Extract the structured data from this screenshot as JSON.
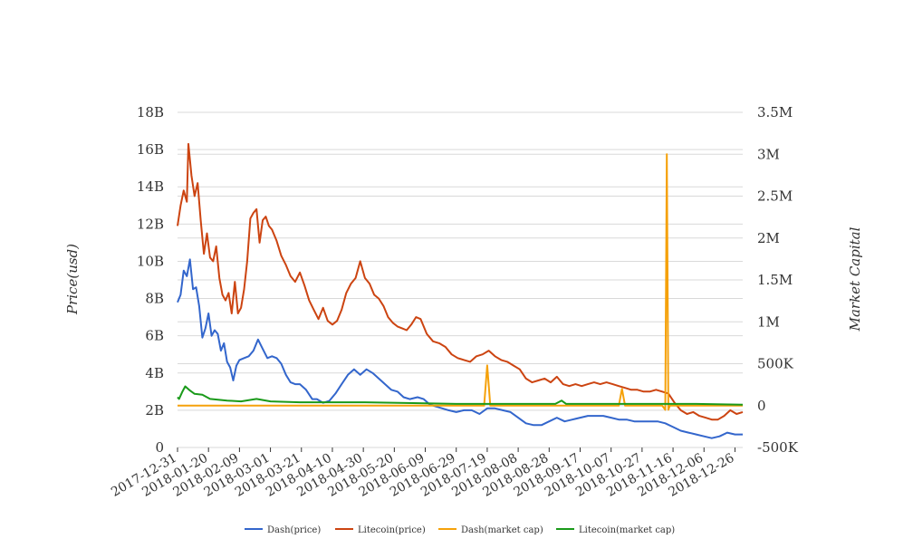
{
  "chart_data": {
    "type": "line",
    "title": "",
    "xlabel": "",
    "ylabel_left": "Price(usd)",
    "ylabel_right": "Market Capital",
    "x_ticks": [
      "2017-12-31",
      "2018-01-20",
      "2018-02-09",
      "2018-03-01",
      "2018-03-21",
      "2018-04-10",
      "2018-04-30",
      "2018-05-20",
      "2018-06-09",
      "2018-06-29",
      "2018-07-19",
      "2018-08-08",
      "2018-08-28",
      "2018-09-17",
      "2018-10-07",
      "2018-10-27",
      "2018-11-16",
      "2018-12-06",
      "2018-12-26"
    ],
    "x_range": [
      "2017-12-31",
      "2018-12-31"
    ],
    "y_left": {
      "ticks": [
        0,
        2,
        4,
        6,
        8,
        10,
        12,
        14,
        16,
        18
      ],
      "tick_labels": [
        "0",
        "2B",
        "4B",
        "6B",
        "8B",
        "10B",
        "12B",
        "14B",
        "16B",
        "18B"
      ],
      "range": [
        0,
        18
      ]
    },
    "y_right": {
      "ticks": [
        -500000,
        0,
        500000,
        1000000,
        1500000,
        2000000,
        2500000,
        3000000,
        3500000
      ],
      "tick_labels": [
        "-500K",
        "0",
        "500K",
        "1M",
        "1.5M",
        "2M",
        "2.5M",
        "3M",
        "3.5M"
      ],
      "range": [
        -500000,
        3500000
      ]
    },
    "legend_position": "bottom",
    "series": [
      {
        "name": "Dash(price)",
        "axis": "left",
        "color": "#3366cc",
        "points": [
          [
            "2017-12-31",
            7.8
          ],
          [
            "2018-01-02",
            8.2
          ],
          [
            "2018-01-04",
            9.5
          ],
          [
            "2018-01-06",
            9.2
          ],
          [
            "2018-01-08",
            10.1
          ],
          [
            "2018-01-10",
            8.5
          ],
          [
            "2018-01-12",
            8.6
          ],
          [
            "2018-01-14",
            7.6
          ],
          [
            "2018-01-16",
            5.9
          ],
          [
            "2018-01-18",
            6.4
          ],
          [
            "2018-01-20",
            7.2
          ],
          [
            "2018-01-22",
            6.0
          ],
          [
            "2018-01-24",
            6.3
          ],
          [
            "2018-01-26",
            6.1
          ],
          [
            "2018-01-28",
            5.2
          ],
          [
            "2018-01-30",
            5.6
          ],
          [
            "2018-02-01",
            4.6
          ],
          [
            "2018-02-03",
            4.3
          ],
          [
            "2018-02-05",
            3.6
          ],
          [
            "2018-02-07",
            4.4
          ],
          [
            "2018-02-09",
            4.7
          ],
          [
            "2018-02-12",
            4.8
          ],
          [
            "2018-02-15",
            4.9
          ],
          [
            "2018-02-18",
            5.2
          ],
          [
            "2018-02-21",
            5.8
          ],
          [
            "2018-02-24",
            5.3
          ],
          [
            "2018-02-27",
            4.8
          ],
          [
            "2018-03-02",
            4.9
          ],
          [
            "2018-03-05",
            4.8
          ],
          [
            "2018-03-08",
            4.5
          ],
          [
            "2018-03-11",
            3.9
          ],
          [
            "2018-03-14",
            3.5
          ],
          [
            "2018-03-17",
            3.4
          ],
          [
            "2018-03-20",
            3.4
          ],
          [
            "2018-03-24",
            3.1
          ],
          [
            "2018-03-28",
            2.6
          ],
          [
            "2018-03-31",
            2.6
          ],
          [
            "2018-04-04",
            2.4
          ],
          [
            "2018-04-08",
            2.5
          ],
          [
            "2018-04-12",
            2.9
          ],
          [
            "2018-04-16",
            3.4
          ],
          [
            "2018-04-20",
            3.9
          ],
          [
            "2018-04-24",
            4.2
          ],
          [
            "2018-04-28",
            3.9
          ],
          [
            "2018-05-02",
            4.2
          ],
          [
            "2018-05-06",
            4.0
          ],
          [
            "2018-05-10",
            3.7
          ],
          [
            "2018-05-14",
            3.4
          ],
          [
            "2018-05-18",
            3.1
          ],
          [
            "2018-05-22",
            3.0
          ],
          [
            "2018-05-26",
            2.7
          ],
          [
            "2018-05-30",
            2.6
          ],
          [
            "2018-06-04",
            2.7
          ],
          [
            "2018-06-08",
            2.6
          ],
          [
            "2018-06-12",
            2.3
          ],
          [
            "2018-06-16",
            2.2
          ],
          [
            "2018-06-20",
            2.1
          ],
          [
            "2018-06-24",
            2.0
          ],
          [
            "2018-06-29",
            1.9
          ],
          [
            "2018-07-04",
            2.0
          ],
          [
            "2018-07-09",
            2.0
          ],
          [
            "2018-07-14",
            1.8
          ],
          [
            "2018-07-19",
            2.1
          ],
          [
            "2018-07-24",
            2.1
          ],
          [
            "2018-07-29",
            2.0
          ],
          [
            "2018-08-03",
            1.9
          ],
          [
            "2018-08-08",
            1.6
          ],
          [
            "2018-08-13",
            1.3
          ],
          [
            "2018-08-18",
            1.2
          ],
          [
            "2018-08-23",
            1.2
          ],
          [
            "2018-08-28",
            1.4
          ],
          [
            "2018-09-02",
            1.6
          ],
          [
            "2018-09-07",
            1.4
          ],
          [
            "2018-09-12",
            1.5
          ],
          [
            "2018-09-17",
            1.6
          ],
          [
            "2018-09-22",
            1.7
          ],
          [
            "2018-09-27",
            1.7
          ],
          [
            "2018-10-02",
            1.7
          ],
          [
            "2018-10-07",
            1.6
          ],
          [
            "2018-10-12",
            1.5
          ],
          [
            "2018-10-17",
            1.5
          ],
          [
            "2018-10-22",
            1.4
          ],
          [
            "2018-10-27",
            1.4
          ],
          [
            "2018-11-01",
            1.4
          ],
          [
            "2018-11-06",
            1.4
          ],
          [
            "2018-11-11",
            1.3
          ],
          [
            "2018-11-16",
            1.1
          ],
          [
            "2018-11-21",
            0.9
          ],
          [
            "2018-11-26",
            0.8
          ],
          [
            "2018-12-01",
            0.7
          ],
          [
            "2018-12-06",
            0.6
          ],
          [
            "2018-12-11",
            0.5
          ],
          [
            "2018-12-16",
            0.6
          ],
          [
            "2018-12-21",
            0.8
          ],
          [
            "2018-12-26",
            0.7
          ],
          [
            "2018-12-31",
            0.7
          ]
        ]
      },
      {
        "name": "Litecoin(price)",
        "axis": "left",
        "color": "#cc4411",
        "points": [
          [
            "2017-12-31",
            11.9
          ],
          [
            "2018-01-02",
            13.0
          ],
          [
            "2018-01-04",
            13.8
          ],
          [
            "2018-01-06",
            13.2
          ],
          [
            "2018-01-07",
            16.3
          ],
          [
            "2018-01-09",
            14.6
          ],
          [
            "2018-01-11",
            13.5
          ],
          [
            "2018-01-13",
            14.2
          ],
          [
            "2018-01-15",
            12.2
          ],
          [
            "2018-01-17",
            10.4
          ],
          [
            "2018-01-19",
            11.5
          ],
          [
            "2018-01-21",
            10.2
          ],
          [
            "2018-01-23",
            10.0
          ],
          [
            "2018-01-25",
            10.8
          ],
          [
            "2018-01-27",
            9.1
          ],
          [
            "2018-01-29",
            8.2
          ],
          [
            "2018-01-31",
            7.9
          ],
          [
            "2018-02-02",
            8.3
          ],
          [
            "2018-02-04",
            7.2
          ],
          [
            "2018-02-06",
            8.9
          ],
          [
            "2018-02-08",
            7.2
          ],
          [
            "2018-02-10",
            7.5
          ],
          [
            "2018-02-12",
            8.5
          ],
          [
            "2018-02-14",
            10.0
          ],
          [
            "2018-02-16",
            12.3
          ],
          [
            "2018-02-18",
            12.6
          ],
          [
            "2018-02-20",
            12.8
          ],
          [
            "2018-02-22",
            11.0
          ],
          [
            "2018-02-24",
            12.2
          ],
          [
            "2018-02-26",
            12.4
          ],
          [
            "2018-02-28",
            11.9
          ],
          [
            "2018-03-02",
            11.7
          ],
          [
            "2018-03-05",
            11.1
          ],
          [
            "2018-03-08",
            10.3
          ],
          [
            "2018-03-11",
            9.8
          ],
          [
            "2018-03-14",
            9.2
          ],
          [
            "2018-03-17",
            8.9
          ],
          [
            "2018-03-20",
            9.4
          ],
          [
            "2018-03-23",
            8.7
          ],
          [
            "2018-03-26",
            7.9
          ],
          [
            "2018-03-29",
            7.4
          ],
          [
            "2018-04-01",
            6.9
          ],
          [
            "2018-04-04",
            7.5
          ],
          [
            "2018-04-07",
            6.8
          ],
          [
            "2018-04-10",
            6.6
          ],
          [
            "2018-04-13",
            6.8
          ],
          [
            "2018-04-16",
            7.4
          ],
          [
            "2018-04-19",
            8.3
          ],
          [
            "2018-04-22",
            8.8
          ],
          [
            "2018-04-25",
            9.1
          ],
          [
            "2018-04-28",
            10.0
          ],
          [
            "2018-05-01",
            9.1
          ],
          [
            "2018-05-04",
            8.8
          ],
          [
            "2018-05-07",
            8.2
          ],
          [
            "2018-05-10",
            8.0
          ],
          [
            "2018-05-13",
            7.6
          ],
          [
            "2018-05-16",
            7.0
          ],
          [
            "2018-05-19",
            6.7
          ],
          [
            "2018-05-22",
            6.5
          ],
          [
            "2018-05-25",
            6.4
          ],
          [
            "2018-05-28",
            6.3
          ],
          [
            "2018-05-31",
            6.6
          ],
          [
            "2018-06-03",
            7.0
          ],
          [
            "2018-06-06",
            6.9
          ],
          [
            "2018-06-10",
            6.1
          ],
          [
            "2018-06-14",
            5.7
          ],
          [
            "2018-06-18",
            5.6
          ],
          [
            "2018-06-22",
            5.4
          ],
          [
            "2018-06-26",
            5.0
          ],
          [
            "2018-06-30",
            4.8
          ],
          [
            "2018-07-04",
            4.7
          ],
          [
            "2018-07-08",
            4.6
          ],
          [
            "2018-07-12",
            4.9
          ],
          [
            "2018-07-16",
            5.0
          ],
          [
            "2018-07-20",
            5.2
          ],
          [
            "2018-07-24",
            4.9
          ],
          [
            "2018-07-28",
            4.7
          ],
          [
            "2018-08-01",
            4.6
          ],
          [
            "2018-08-05",
            4.4
          ],
          [
            "2018-08-09",
            4.2
          ],
          [
            "2018-08-13",
            3.7
          ],
          [
            "2018-08-17",
            3.5
          ],
          [
            "2018-08-21",
            3.6
          ],
          [
            "2018-08-25",
            3.7
          ],
          [
            "2018-08-29",
            3.5
          ],
          [
            "2018-09-02",
            3.8
          ],
          [
            "2018-09-06",
            3.4
          ],
          [
            "2018-09-10",
            3.3
          ],
          [
            "2018-09-14",
            3.4
          ],
          [
            "2018-09-18",
            3.3
          ],
          [
            "2018-09-22",
            3.4
          ],
          [
            "2018-09-26",
            3.5
          ],
          [
            "2018-09-30",
            3.4
          ],
          [
            "2018-10-04",
            3.5
          ],
          [
            "2018-10-08",
            3.4
          ],
          [
            "2018-10-12",
            3.3
          ],
          [
            "2018-10-16",
            3.2
          ],
          [
            "2018-10-20",
            3.1
          ],
          [
            "2018-10-24",
            3.1
          ],
          [
            "2018-10-28",
            3.0
          ],
          [
            "2018-11-01",
            3.0
          ],
          [
            "2018-11-05",
            3.1
          ],
          [
            "2018-11-09",
            3.0
          ],
          [
            "2018-11-13",
            2.9
          ],
          [
            "2018-11-17",
            2.4
          ],
          [
            "2018-11-21",
            2.0
          ],
          [
            "2018-11-25",
            1.8
          ],
          [
            "2018-11-29",
            1.9
          ],
          [
            "2018-12-03",
            1.7
          ],
          [
            "2018-12-07",
            1.6
          ],
          [
            "2018-12-11",
            1.5
          ],
          [
            "2018-12-15",
            1.5
          ],
          [
            "2018-12-19",
            1.7
          ],
          [
            "2018-12-23",
            2.0
          ],
          [
            "2018-12-27",
            1.8
          ],
          [
            "2018-12-31",
            1.9
          ]
        ]
      },
      {
        "name": "Dash(market cap)",
        "axis": "right",
        "color": "#f5a10a",
        "points": [
          [
            "2017-12-31",
            0
          ],
          [
            "2018-07-17",
            0
          ],
          [
            "2018-07-19",
            480000
          ],
          [
            "2018-07-21",
            0
          ],
          [
            "2018-10-12",
            0
          ],
          [
            "2018-10-14",
            200000
          ],
          [
            "2018-10-16",
            0
          ],
          [
            "2018-11-09",
            0
          ],
          [
            "2018-11-11",
            -50000
          ],
          [
            "2018-11-12",
            3000000
          ],
          [
            "2018-11-13",
            -50000
          ],
          [
            "2018-11-14",
            0
          ],
          [
            "2018-12-31",
            0
          ]
        ]
      },
      {
        "name": "Litecoin(market cap)",
        "axis": "right",
        "color": "#1a9a1a",
        "points": [
          [
            "2017-12-31",
            100000
          ],
          [
            "2018-01-01",
            80000
          ],
          [
            "2018-01-03",
            160000
          ],
          [
            "2018-01-05",
            230000
          ],
          [
            "2018-01-08",
            180000
          ],
          [
            "2018-01-11",
            140000
          ],
          [
            "2018-01-16",
            130000
          ],
          [
            "2018-01-21",
            80000
          ],
          [
            "2018-02-01",
            60000
          ],
          [
            "2018-02-10",
            50000
          ],
          [
            "2018-02-20",
            80000
          ],
          [
            "2018-03-01",
            50000
          ],
          [
            "2018-03-20",
            40000
          ],
          [
            "2018-04-10",
            40000
          ],
          [
            "2018-05-01",
            40000
          ],
          [
            "2018-06-01",
            30000
          ],
          [
            "2018-06-29",
            20000
          ],
          [
            "2018-08-01",
            20000
          ],
          [
            "2018-09-01",
            20000
          ],
          [
            "2018-09-05",
            60000
          ],
          [
            "2018-09-08",
            20000
          ],
          [
            "2018-10-01",
            20000
          ],
          [
            "2018-11-01",
            20000
          ],
          [
            "2018-12-01",
            20000
          ],
          [
            "2018-12-31",
            10000
          ]
        ]
      }
    ]
  }
}
